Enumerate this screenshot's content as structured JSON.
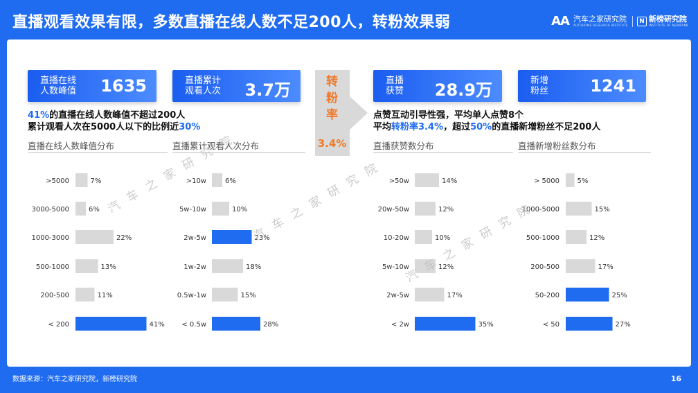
{
  "title": "直播观看效果有限，多数直播在线人数不足200人，转粉效果弱",
  "logo": {
    "mark": "AA",
    "brand1_zh": "汽车之家研究院",
    "brand1_en": "AUTOHOME RESEARCH INSTITUTE",
    "brand2_zh": "新榜研究院",
    "brand2_en": "INSTITUTE OF NEWRANK"
  },
  "cards": [
    {
      "label1": "直播在线",
      "label2": "人数峰值",
      "value": "1635"
    },
    {
      "label1": "直播累计",
      "label2": "观看人次",
      "value": "3.7万"
    },
    {
      "label1": "直播",
      "label2": "获赞",
      "value": "28.9万"
    },
    {
      "label1": "新增",
      "label2": "粉丝",
      "value": "1241"
    }
  ],
  "notes_left": {
    "l1_hl": "41%",
    "l1_rest": "的直播在线人数峰值不超过200人",
    "l2_pre": "累计观看人次在5000人以下的比例近",
    "l2_hl": "30%"
  },
  "notes_right": {
    "l1": "点赞互动引导性强，平均单人点赞8个",
    "l2_pre": "平均",
    "l2_hl1": "转粉率3.4%",
    "l2_mid": "，超过",
    "l2_hl2": "50%",
    "l2_post": "的直播新增粉丝不足200人"
  },
  "arrow": {
    "label": "转粉率",
    "value": "3.4%"
  },
  "watermark": "汽车之家研究院",
  "colors": {
    "highlight": "#1f6cf0",
    "bar_gray": "#d9d9d9",
    "accent_orange": "#f07a2a"
  },
  "chart_data": [
    {
      "type": "bar",
      "title": "直播在线人数峰值分布",
      "orientation": "horizontal",
      "categories": [
        ">5000",
        "3000-5000",
        "1000-3000",
        "500-1000",
        "200-500",
        "< 200"
      ],
      "values": [
        7,
        6,
        22,
        13,
        11,
        41
      ],
      "highlight": [
        5
      ],
      "unit": "%"
    },
    {
      "type": "bar",
      "title": "直播累计观看人次分布",
      "orientation": "horizontal",
      "categories": [
        ">10w",
        "5w-10w",
        "2w-5w",
        "1w-2w",
        "0.5w-1w",
        "< 0.5w"
      ],
      "values": [
        6,
        10,
        23,
        18,
        15,
        28
      ],
      "highlight": [
        2,
        5
      ],
      "unit": "%"
    },
    {
      "type": "bar",
      "title": "直播获赞数分布",
      "orientation": "horizontal",
      "categories": [
        ">50w",
        "20w-50w",
        "10-20w",
        "5w-10w",
        "2w-5w",
        "< 2w"
      ],
      "values": [
        14,
        12,
        10,
        12,
        17,
        35
      ],
      "highlight": [
        5
      ],
      "unit": "%"
    },
    {
      "type": "bar",
      "title": "直播新增粉丝数分布",
      "orientation": "horizontal",
      "categories": [
        "> 5000",
        "1000-5000",
        "500-1000",
        "200-500",
        "50-200",
        "< 50"
      ],
      "values": [
        5,
        15,
        12,
        17,
        25,
        27
      ],
      "highlight": [
        4,
        5
      ],
      "unit": "%"
    }
  ],
  "footer": "数据来源：汽车之家研究院，新榜研究院",
  "page_number": "16"
}
